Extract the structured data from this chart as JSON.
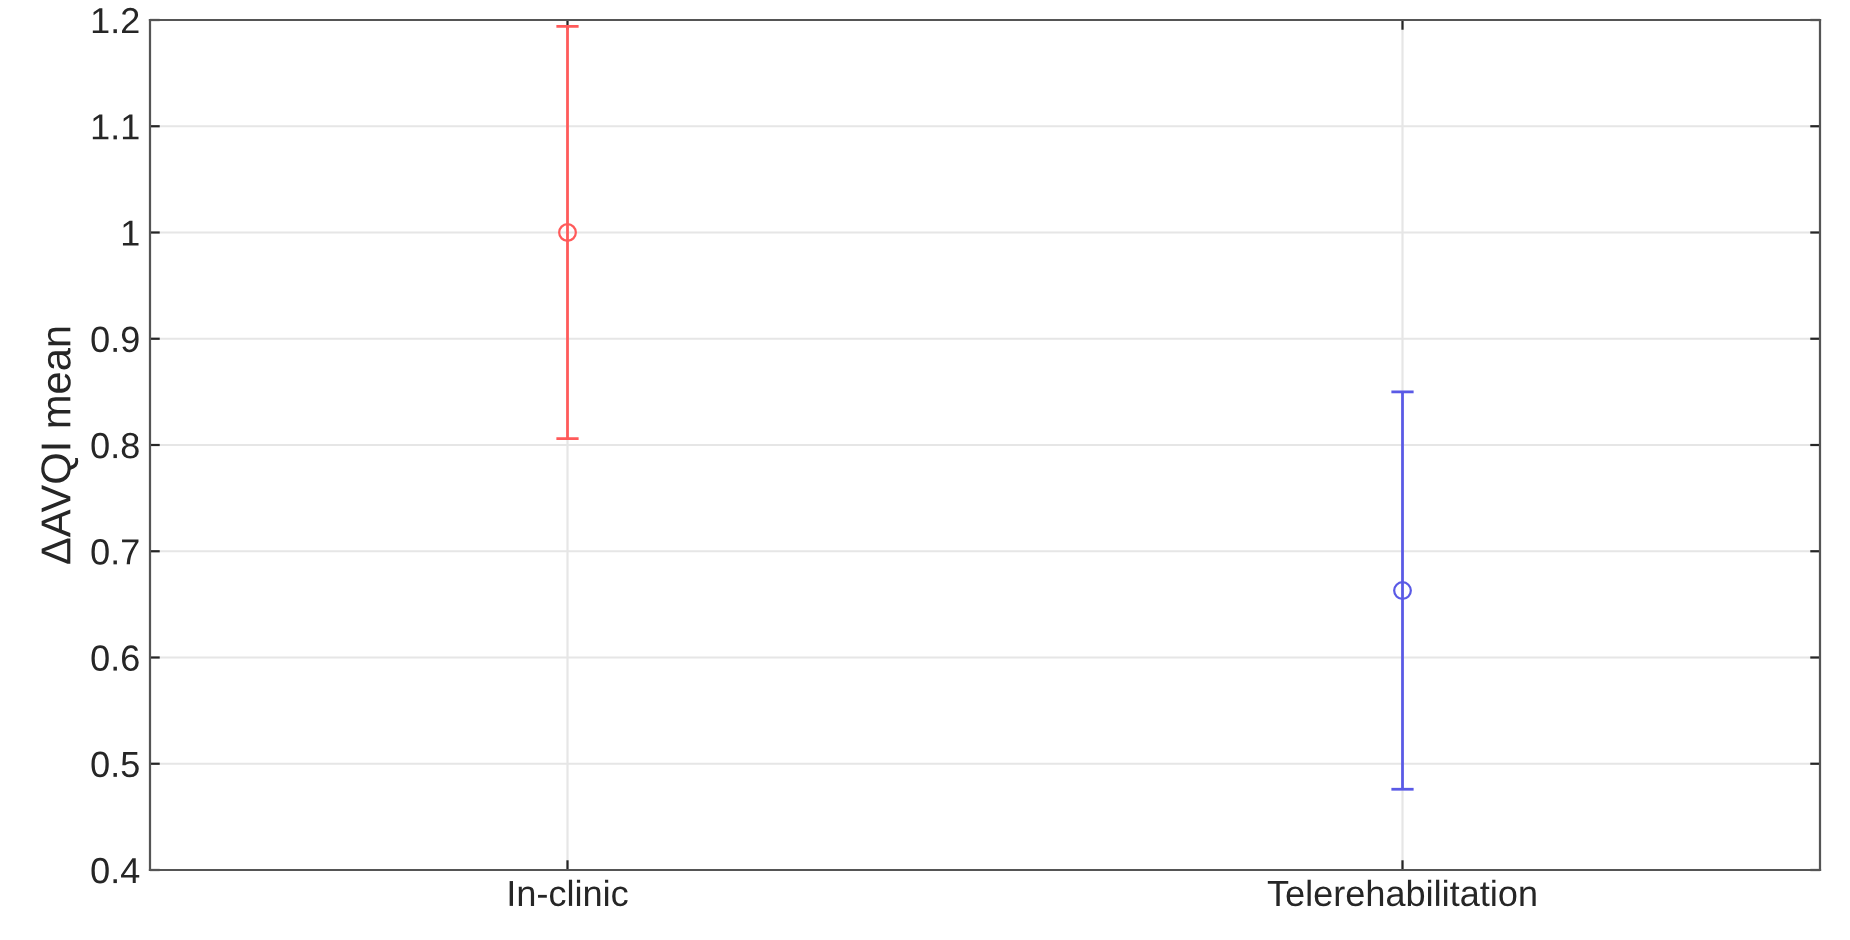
{
  "chart_data": {
    "type": "scatter",
    "ylabel": "ΔAVQI mean",
    "categories": [
      "In-clinic",
      "Telerehabilitation"
    ],
    "values": [
      1.0,
      0.663
    ],
    "errors": [
      0.194,
      0.187
    ],
    "colors": [
      "#ff5a5a",
      "#5a5ae6"
    ],
    "ylim": [
      0.4,
      1.2
    ],
    "yticks": [
      0.4,
      0.5,
      0.6,
      0.7,
      0.8,
      0.9,
      {
        "value": 1.0,
        "label": "1"
      },
      1.1,
      1.2
    ],
    "grid": true,
    "marker": "circle"
  }
}
